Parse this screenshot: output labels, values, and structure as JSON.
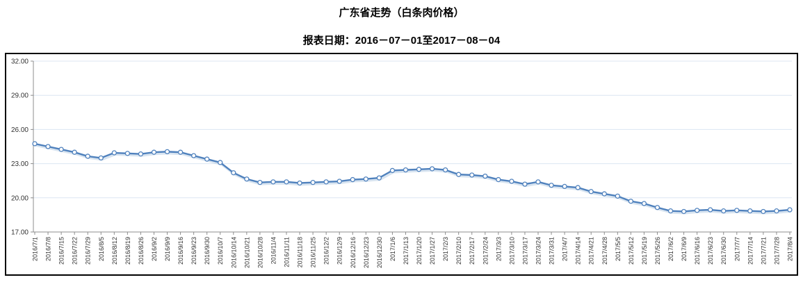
{
  "header": {
    "title": "广东省走势（白条肉价格）",
    "subtitle": "报表日期：2016－07－01至2017－08－04"
  },
  "chart_data": {
    "type": "line",
    "title": "广东省走势（白条肉价格）",
    "subtitle": "报表日期：2016－07－01至2017－08－04",
    "x": [
      "2016/7/1",
      "2016/7/8",
      "2016/7/15",
      "2016/7/22",
      "2016/7/29",
      "2016/8/5",
      "2016/8/12",
      "2016/8/19",
      "2016/8/26",
      "2016/9/2",
      "2016/9/9",
      "2016/9/16",
      "2016/9/23",
      "2016/9/30",
      "2016/10/7",
      "2016/10/14",
      "2016/10/21",
      "2016/10/28",
      "2016/11/4",
      "2016/11/11",
      "2016/11/18",
      "2016/11/25",
      "2016/12/2",
      "2016/12/9",
      "2016/12/16",
      "2016/12/23",
      "2016/12/30",
      "2017/1/6",
      "2017/1/13",
      "2017/1/20",
      "2017/1/27",
      "2017/2/3",
      "2017/2/10",
      "2017/2/17",
      "2017/2/24",
      "2017/3/3",
      "2017/3/10",
      "2017/3/17",
      "2017/3/24",
      "2017/3/31",
      "2017/4/7",
      "2017/4/14",
      "2017/4/21",
      "2017/4/28",
      "2017/5/5",
      "2017/5/12",
      "2017/5/19",
      "2017/5/26",
      "2017/6/2",
      "2017/6/9",
      "2017/6/16",
      "2017/6/23",
      "2017/6/30",
      "2017/7/7",
      "2017/7/14",
      "2017/7/21",
      "2017/7/28",
      "2017/8/4"
    ],
    "values": [
      24.75,
      24.5,
      24.25,
      24.0,
      23.65,
      23.5,
      23.95,
      23.9,
      23.85,
      24.0,
      24.05,
      24.0,
      23.7,
      23.4,
      23.1,
      22.2,
      21.65,
      21.35,
      21.4,
      21.4,
      21.3,
      21.35,
      21.4,
      21.45,
      21.6,
      21.65,
      21.75,
      22.4,
      22.45,
      22.5,
      22.55,
      22.45,
      22.05,
      22.0,
      21.9,
      21.6,
      21.45,
      21.2,
      21.4,
      21.1,
      21.0,
      20.9,
      20.55,
      20.35,
      20.15,
      19.7,
      19.5,
      19.15,
      18.85,
      18.8,
      18.9,
      18.95,
      18.85,
      18.9,
      18.85,
      18.8,
      18.85,
      18.95
    ],
    "xlabel": "",
    "ylabel": "",
    "ylim": [
      17,
      32
    ],
    "ytick_interval": 3,
    "ytick_labels": [
      "32.00",
      "29.00",
      "26.00",
      "23.00",
      "20.00",
      "17.00"
    ],
    "grid": true,
    "legend_position": "none",
    "marker": "open-circle",
    "colors": {
      "line": "#4f81bd",
      "line_shadow": "#a8c3de",
      "marker_fill": "#ffffff",
      "gridline": "#dce6f2",
      "axis": "#8c8c8c",
      "tick_label": "#333333",
      "border": "#000000",
      "background": "#ffffff"
    }
  }
}
